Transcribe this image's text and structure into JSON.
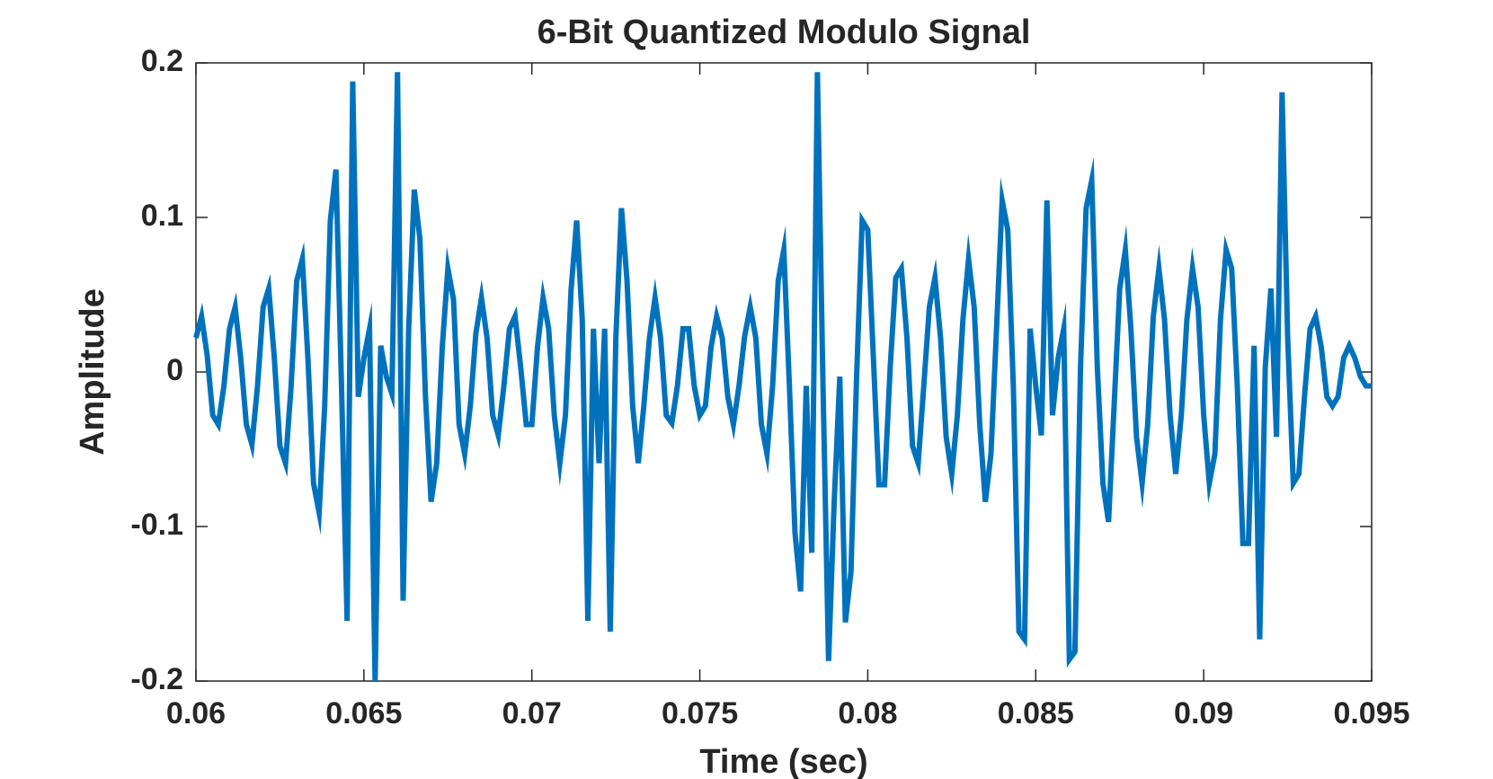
{
  "chart_data": {
    "type": "line",
    "title": "6-Bit Quantized Modulo Signal",
    "xlabel": "Time (sec)",
    "ylabel": "Amplitude",
    "x": [
      0.06,
      0.060167,
      0.060333,
      0.0605,
      0.060667,
      0.060833,
      0.061,
      0.061167,
      0.061333,
      0.0615,
      0.061667,
      0.061833,
      0.062,
      0.062167,
      0.062333,
      0.0625,
      0.062667,
      0.062833,
      0.063,
      0.063167,
      0.063333,
      0.0635,
      0.063667,
      0.063833,
      0.064,
      0.064167,
      0.064333,
      0.0645,
      0.064667,
      0.064833,
      0.065,
      0.065167,
      0.065333,
      0.0655,
      0.065667,
      0.065833,
      0.066,
      0.066167,
      0.066333,
      0.0665,
      0.066667,
      0.066833,
      0.067,
      0.067167,
      0.067333,
      0.0675,
      0.067667,
      0.067833,
      0.068,
      0.068167,
      0.068333,
      0.0685,
      0.068667,
      0.068833,
      0.069,
      0.069167,
      0.069333,
      0.0695,
      0.069667,
      0.069833,
      0.07,
      0.070167,
      0.070333,
      0.0705,
      0.070667,
      0.070833,
      0.071,
      0.071167,
      0.071333,
      0.0715,
      0.071667,
      0.071833,
      0.072,
      0.072167,
      0.072333,
      0.0725,
      0.072667,
      0.072833,
      0.073,
      0.073167,
      0.073333,
      0.0735,
      0.073667,
      0.073833,
      0.074,
      0.074167,
      0.074333,
      0.0745,
      0.074667,
      0.074833,
      0.075,
      0.075167,
      0.075333,
      0.0755,
      0.075667,
      0.075833,
      0.076,
      0.076167,
      0.076333,
      0.0765,
      0.076667,
      0.076833,
      0.077,
      0.077167,
      0.077333,
      0.0775,
      0.077667,
      0.077833,
      0.078,
      0.078167,
      0.078333,
      0.0785,
      0.078667,
      0.078833,
      0.079,
      0.079167,
      0.079333,
      0.0795,
      0.079667,
      0.079833,
      0.08,
      0.080167,
      0.080333,
      0.0805,
      0.080667,
      0.080833,
      0.081,
      0.081167,
      0.081333,
      0.0815,
      0.081667,
      0.081833,
      0.082,
      0.082167,
      0.082333,
      0.0825,
      0.082667,
      0.082833,
      0.083,
      0.083167,
      0.083333,
      0.0835,
      0.083667,
      0.083833,
      0.084,
      0.084167,
      0.084333,
      0.0845,
      0.084667,
      0.084833,
      0.085,
      0.085167,
      0.085333,
      0.0855,
      0.085667,
      0.085833,
      0.086,
      0.086167,
      0.086333,
      0.0865,
      0.086667,
      0.086833,
      0.087,
      0.087167,
      0.087333,
      0.0875,
      0.087667,
      0.087833,
      0.088,
      0.088167,
      0.088333,
      0.0885,
      0.088667,
      0.088833,
      0.089,
      0.089167,
      0.089333,
      0.0895,
      0.089667,
      0.089833,
      0.09,
      0.090167,
      0.090333,
      0.0905,
      0.090667,
      0.090833,
      0.091,
      0.091167,
      0.091333,
      0.0915,
      0.091667,
      0.091833,
      0.092,
      0.092167,
      0.092333,
      0.0925,
      0.092667,
      0.092833,
      0.093,
      0.093167,
      0.093333,
      0.0935,
      0.093667,
      0.093833,
      0.094,
      0.094167,
      0.094333,
      0.0945,
      0.094667,
      0.094833,
      0.095
    ],
    "series": [
      {
        "color": "#0072bd",
        "values": [
          0.022,
          0.036,
          0.011,
          -0.028,
          -0.034,
          -0.009,
          0.028,
          0.042,
          0.009,
          -0.034,
          -0.047,
          -0.009,
          0.042,
          0.054,
          0.009,
          -0.048,
          -0.059,
          -0.009,
          0.059,
          0.073,
          0.009,
          -0.072,
          -0.091,
          -0.022,
          0.098,
          0.131,
          -0.009,
          -0.161,
          0.188,
          -0.016,
          0.009,
          0.028,
          -0.2,
          0.017,
          -0.003,
          -0.014,
          0.194,
          -0.148,
          0.028,
          0.118,
          0.086,
          -0.016,
          -0.084,
          -0.059,
          0.016,
          0.067,
          0.047,
          -0.034,
          -0.053,
          -0.022,
          0.025,
          0.048,
          0.022,
          -0.028,
          -0.041,
          -0.009,
          0.028,
          0.036,
          0.003,
          -0.034,
          -0.034,
          0.016,
          0.048,
          0.028,
          -0.028,
          -0.059,
          -0.028,
          0.053,
          0.098,
          0.034,
          -0.161,
          0.028,
          -0.059,
          0.028,
          -0.168,
          0.022,
          0.106,
          0.059,
          -0.022,
          -0.059,
          -0.022,
          0.022,
          0.048,
          0.022,
          -0.028,
          -0.033,
          -0.009,
          0.028,
          0.028,
          -0.009,
          -0.028,
          -0.022,
          0.016,
          0.036,
          0.022,
          -0.016,
          -0.034,
          -0.009,
          0.023,
          0.042,
          0.022,
          -0.034,
          -0.053,
          -0.009,
          0.059,
          0.079,
          -0.009,
          -0.104,
          -0.142,
          -0.009,
          -0.117,
          0.194,
          -0.009,
          -0.187,
          -0.084,
          -0.003,
          -0.162,
          -0.129,
          -0.003,
          0.098,
          0.092,
          0.009,
          -0.073,
          -0.073,
          0.003,
          0.061,
          0.067,
          0.022,
          -0.048,
          -0.059,
          -0.009,
          0.042,
          0.061,
          0.022,
          -0.042,
          -0.066,
          -0.028,
          0.034,
          0.073,
          0.042,
          -0.034,
          -0.084,
          -0.053,
          0.028,
          0.111,
          0.092,
          -0.009,
          -0.168,
          -0.173,
          0.028,
          -0.009,
          -0.041,
          0.111,
          -0.028,
          0.009,
          0.028,
          -0.186,
          -0.181,
          0.003,
          0.106,
          0.124,
          0.003,
          -0.072,
          -0.097,
          -0.022,
          0.054,
          0.079,
          0.028,
          -0.042,
          -0.072,
          -0.034,
          0.036,
          0.067,
          0.034,
          -0.028,
          -0.066,
          -0.028,
          0.034,
          0.067,
          0.042,
          -0.028,
          -0.072,
          -0.053,
          0.034,
          0.079,
          0.067,
          -0.009,
          -0.111,
          -0.111,
          0.017,
          -0.173,
          0.003,
          0.054,
          -0.042,
          0.181,
          0.022,
          -0.072,
          -0.066,
          -0.016,
          0.028,
          0.036,
          0.016,
          -0.016,
          -0.022,
          -0.016,
          0.009,
          0.017,
          0.009,
          -0.003,
          -0.009,
          -0.009
        ]
      }
    ],
    "xlim": [
      0.06,
      0.095
    ],
    "xticks": [
      0.06,
      0.065,
      0.07,
      0.075,
      0.08,
      0.085,
      0.09,
      0.095
    ],
    "ylim": [
      -0.2,
      0.2
    ],
    "yticks": [
      -0.2,
      -0.1,
      0,
      0.1,
      0.2
    ],
    "grid": false
  }
}
